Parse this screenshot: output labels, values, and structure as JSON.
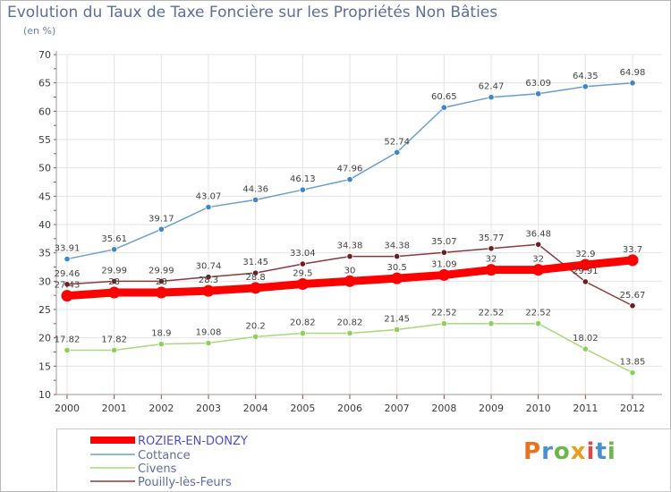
{
  "title": "Evolution du Taux de Taxe Foncière sur les Propriétés Non Bâties",
  "subtitle": "(en %)",
  "logo": {
    "text": "Proxiti",
    "colors": [
      "#e8731c",
      "#4a8fd4",
      "#6bb84a",
      "#e8a01c",
      "#d84a4a",
      "#4a8fd4",
      "#6bb84a"
    ]
  },
  "chart_data": {
    "type": "line",
    "x": [
      "2000",
      "2001",
      "2002",
      "2003",
      "2004",
      "2005",
      "2006",
      "2007",
      "2008",
      "2009",
      "2010",
      "2011",
      "2012"
    ],
    "ylim": [
      10,
      70
    ],
    "yticks": [
      10,
      15,
      20,
      25,
      30,
      35,
      40,
      45,
      50,
      55,
      60,
      65,
      70
    ],
    "grid": true,
    "legend_position": "bottom-left",
    "series": [
      {
        "name": "ROZIER-EN-DONZY",
        "color": "#ff0000",
        "emphasis": true,
        "values": [
          27.43,
          28,
          28,
          28.3,
          28.8,
          29.5,
          30,
          30.5,
          31.09,
          32,
          32,
          32.9,
          33.7
        ],
        "labels": [
          "27.43",
          "28",
          "28",
          "28.3",
          "28.8",
          "29.5",
          "30",
          "30.5",
          "31.09",
          "32",
          "32",
          "32.9",
          "33.7"
        ]
      },
      {
        "name": "Cottance",
        "color": "#6a9fd0",
        "marker": "#3f86c8",
        "values": [
          33.91,
          35.61,
          39.17,
          43.07,
          44.36,
          46.13,
          47.96,
          52.74,
          60.65,
          62.47,
          63.09,
          64.35,
          64.98
        ],
        "labels": [
          "33.91",
          "35.61",
          "39.17",
          "43.07",
          "44.36",
          "46.13",
          "47.96",
          "52.74",
          "60.65",
          "62.47",
          "63.09",
          "64.35",
          "64.98"
        ]
      },
      {
        "name": "Civens",
        "color": "#a8d878",
        "marker": "#8dcf5a",
        "values": [
          17.82,
          17.82,
          18.9,
          19.08,
          20.2,
          20.82,
          20.82,
          21.45,
          22.52,
          22.52,
          22.52,
          18.02,
          13.85
        ],
        "labels": [
          "17.82",
          "17.82",
          "18.9",
          "19.08",
          "20.2",
          "20.82",
          "20.82",
          "21.45",
          "22.52",
          "22.52",
          "22.52",
          "18.02",
          "13.85"
        ]
      },
      {
        "name": "Pouilly-lès-Feurs",
        "color": "#8b3a3a",
        "marker": "#6b1f1f",
        "values": [
          29.46,
          29.99,
          29.99,
          30.74,
          31.45,
          33.04,
          34.38,
          34.38,
          35.07,
          35.77,
          36.48,
          29.91,
          25.67
        ],
        "labels": [
          "29.46",
          "29.99",
          "29.99",
          "30.74",
          "31.45",
          "33.04",
          "34.38",
          "34.38",
          "35.07",
          "35.77",
          "36.48",
          "29.91",
          "25.67"
        ]
      }
    ]
  }
}
